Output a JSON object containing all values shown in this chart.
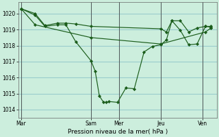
{
  "background_color": "#cceedd",
  "grid_color": "#99cccc",
  "line_color": "#1a5c1a",
  "marker_color": "#1a5c1a",
  "xlabel": "Pression niveau de la mer( hPa )",
  "ylim": [
    1013.5,
    1020.7
  ],
  "yticks": [
    1014,
    1015,
    1016,
    1017,
    1018,
    1019,
    1020
  ],
  "xtick_labels": [
    "Mar",
    "Sam",
    "Mer",
    "Jeu",
    "Ven"
  ],
  "xtick_positions": [
    0,
    5,
    7,
    10,
    13
  ],
  "xlim": [
    -0.2,
    14.0
  ],
  "vlines": [
    0,
    5,
    7,
    10,
    13
  ],
  "series1": {
    "x": [
      0,
      1,
      1.7,
      2.6,
      3.2,
      3.9,
      5.0,
      5.3,
      5.6,
      5.9,
      6.1,
      6.3,
      6.9,
      7.5,
      8.1,
      8.8,
      9.4,
      10.0,
      10.4,
      10.8,
      11.4,
      12.0,
      12.6,
      13.2,
      13.6
    ],
    "y": [
      1020.3,
      1019.9,
      1019.2,
      1019.3,
      1019.3,
      1018.25,
      1017.05,
      1016.4,
      1014.85,
      1014.45,
      1014.45,
      1014.5,
      1014.45,
      1015.35,
      1015.3,
      1017.6,
      1017.95,
      1018.05,
      1018.35,
      1019.55,
      1018.95,
      1018.05,
      1018.1,
      1019.2,
      1019.15
    ]
  },
  "series2": {
    "x": [
      0,
      1,
      1.7,
      2.6,
      3.2,
      3.9,
      5.0,
      10.0,
      10.4,
      10.8,
      11.4,
      12.0,
      12.6,
      13.2,
      13.6
    ],
    "y": [
      1020.3,
      1020.0,
      1019.25,
      1019.4,
      1019.4,
      1019.35,
      1019.2,
      1019.05,
      1018.85,
      1019.55,
      1019.55,
      1018.85,
      1019.1,
      1019.2,
      1019.2
    ]
  },
  "series3": {
    "x": [
      0,
      1,
      5.0,
      10.0,
      13.2,
      13.6
    ],
    "y": [
      1020.3,
      1019.3,
      1018.5,
      1018.1,
      1018.85,
      1019.1
    ]
  }
}
